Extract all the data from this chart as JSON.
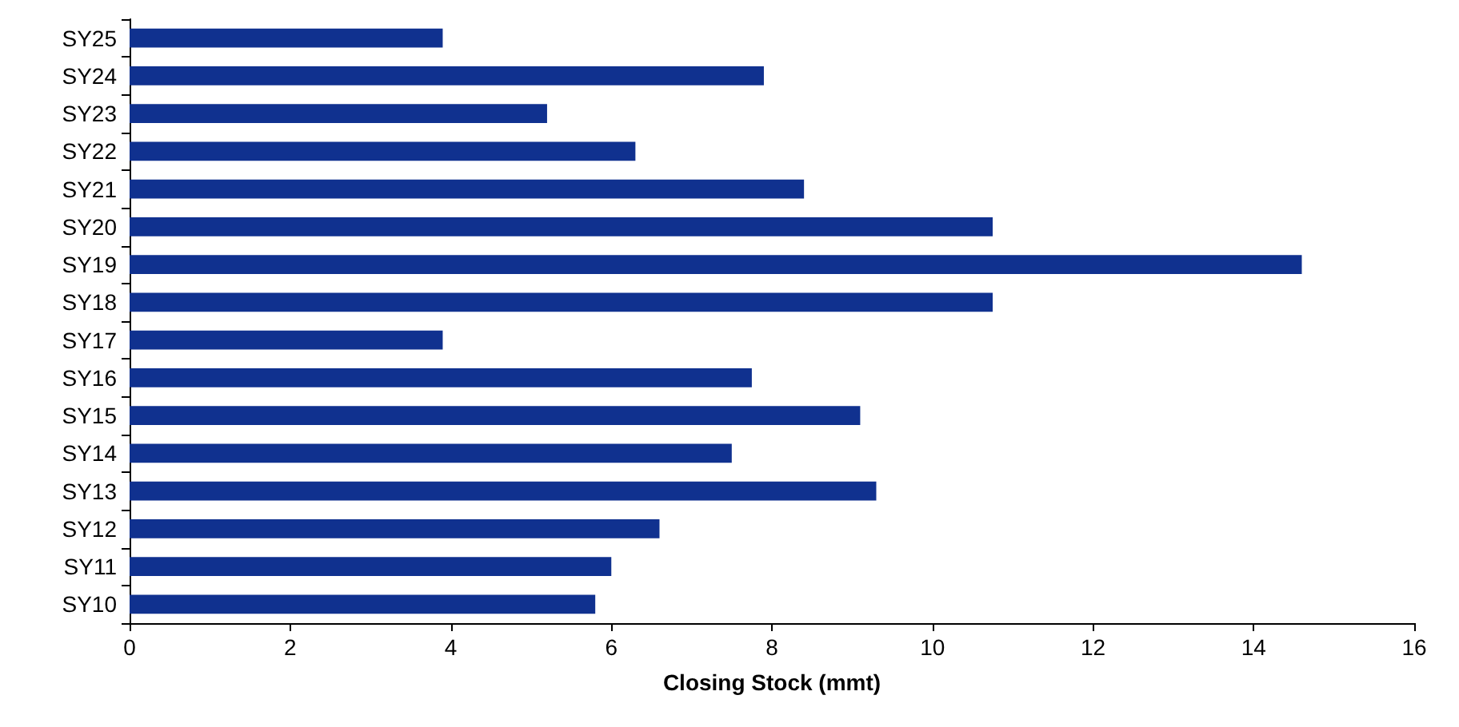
{
  "chart_data": {
    "type": "bar",
    "orientation": "horizontal",
    "xlabel": "Closing Stock (mmt)",
    "categories": [
      "SY25",
      "SY24",
      "SY23",
      "SY22",
      "SY21",
      "SY20",
      "SY19",
      "SY18",
      "SY17",
      "SY16",
      "SY15",
      "SY14",
      "SY13",
      "SY12",
      "SY11",
      "SY10"
    ],
    "values": [
      3.9,
      7.9,
      5.2,
      6.3,
      8.4,
      10.75,
      14.6,
      10.75,
      3.9,
      7.75,
      9.1,
      7.5,
      9.3,
      6.6,
      6.0,
      5.8
    ],
    "color": "#10318f",
    "xlim": [
      0,
      16
    ],
    "xticks": [
      0,
      2,
      4,
      6,
      8,
      10,
      12,
      14,
      16
    ]
  }
}
